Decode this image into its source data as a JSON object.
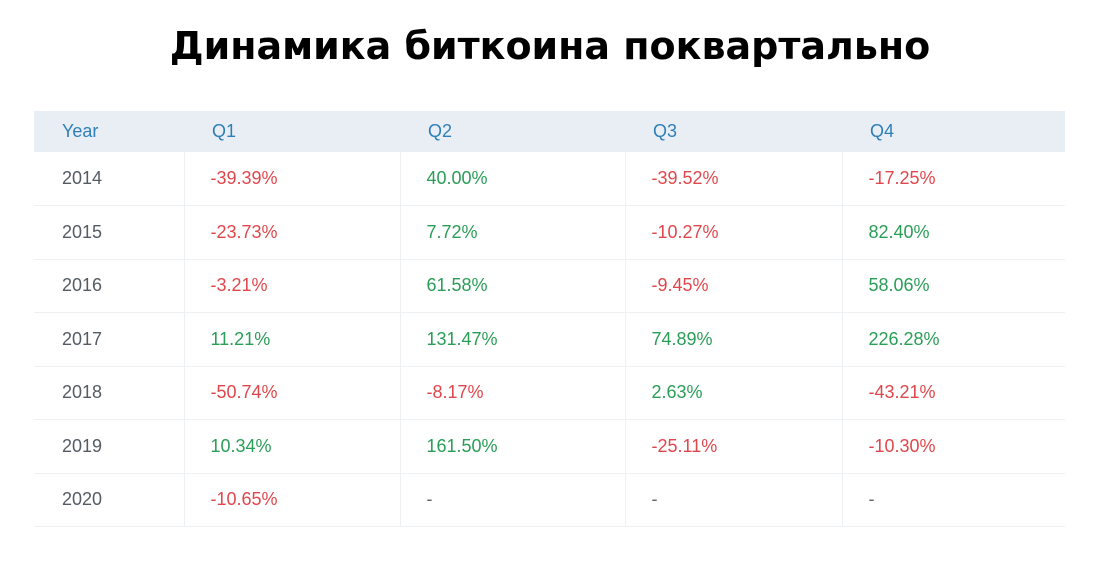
{
  "title": "Динамика биткоина поквартально",
  "colors": {
    "header_bg": "#e9eef5",
    "header_text": "#2e7fb8",
    "positive": "#2a9d57",
    "negative": "#e0474c",
    "neutral": "#666666",
    "year_text": "#555b63"
  },
  "table": {
    "headers": [
      "Year",
      "Q1",
      "Q2",
      "Q3",
      "Q4"
    ],
    "rows": [
      {
        "year": "2014",
        "values": [
          "-39.39%",
          "40.00%",
          "-39.52%",
          "-17.25%"
        ]
      },
      {
        "year": "2015",
        "values": [
          "-23.73%",
          "7.72%",
          "-10.27%",
          "82.40%"
        ]
      },
      {
        "year": "2016",
        "values": [
          "-3.21%",
          "61.58%",
          "-9.45%",
          "58.06%"
        ]
      },
      {
        "year": "2017",
        "values": [
          "11.21%",
          "131.47%",
          "74.89%",
          "226.28%"
        ]
      },
      {
        "year": "2018",
        "values": [
          "-50.74%",
          "-8.17%",
          "2.63%",
          "-43.21%"
        ]
      },
      {
        "year": "2019",
        "values": [
          "10.34%",
          "161.50%",
          "-25.11%",
          "-10.30%"
        ]
      },
      {
        "year": "2020",
        "values": [
          "-10.65%",
          "-",
          "-",
          "-"
        ]
      }
    ]
  }
}
